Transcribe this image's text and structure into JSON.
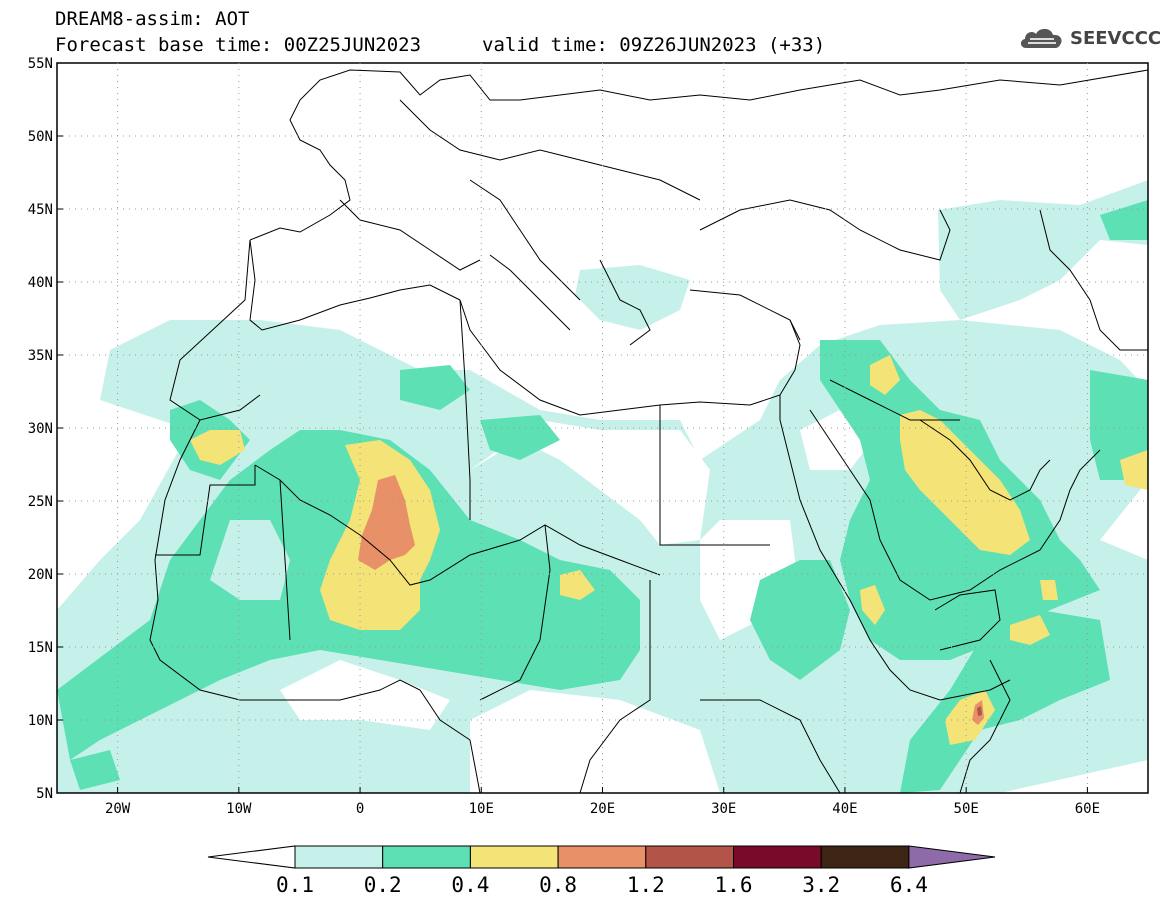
{
  "header": {
    "line1": "DREAM8-assim: AOT",
    "line2": "Forecast base time: 00Z25JUN2023",
    "valid": "valid time: 09Z26JUN2023 (+33)",
    "logo_text": "SEEVCCC",
    "logo_icon": "cloud-icon"
  },
  "map": {
    "lat_labels": [
      "55N",
      "50N",
      "45N",
      "40N",
      "35N",
      "30N",
      "25N",
      "20N",
      "15N",
      "10N",
      "5N"
    ],
    "lon_labels": [
      "20W",
      "10W",
      "0",
      "10E",
      "20E",
      "30E",
      "40E",
      "50E",
      "60E"
    ],
    "lat_range": [
      5,
      55
    ],
    "lon_range": [
      -25,
      65
    ]
  },
  "colorbar": {
    "labels": [
      "0.1",
      "0.2",
      "0.4",
      "0.8",
      "1.2",
      "1.6",
      "3.2",
      "6.4"
    ],
    "colors": [
      "#c6f1ea",
      "#5ee0b5",
      "#f4e477",
      "#e89068",
      "#b35448",
      "#7a0a2a",
      "#3e2415",
      "#8e6aa9"
    ]
  },
  "colors": {
    "c1": "#c6f1ea",
    "c2": "#5ee0b5",
    "c3": "#f4e477",
    "c4": "#e89068",
    "c5": "#b35448",
    "border": "#000000"
  }
}
